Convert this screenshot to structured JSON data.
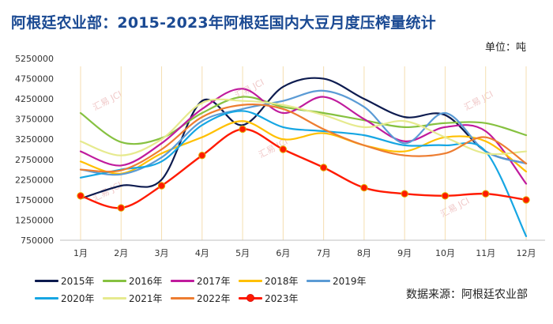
{
  "title": "阿根廷农业部：2015-2023年阿根廷国内大豆月度压榨量统计",
  "unit_label": "单位：吨",
  "source_label": "数据来源：阿根廷农业部",
  "watermark_text": "汇易",
  "watermark_sub": "JCI",
  "chart_data": {
    "type": "line",
    "title": "阿根廷农业部：2015-2023年阿根廷国内大豆月度压榨量统计",
    "xlabel": "",
    "ylabel": "单位：吨",
    "ylim": [
      750000,
      5250000
    ],
    "yticks": [
      750000,
      1250000,
      1750000,
      2250000,
      2750000,
      3250000,
      3750000,
      4250000,
      4750000,
      5250000
    ],
    "yticks_labels": [
      "750000",
      "1250000",
      "1750000",
      "2250000",
      "2750000",
      "3250000",
      "3750000",
      "4250000",
      "4750000",
      "5250000"
    ],
    "grid": false,
    "legend_position": "bottom-left",
    "categories": [
      "1月",
      "2月",
      "3月",
      "4月",
      "5月",
      "6月",
      "7月",
      "8月",
      "9月",
      "10月",
      "11月",
      "12月"
    ],
    "series": [
      {
        "name": "2015年",
        "color": "#0d1b4f",
        "values": [
          1780000,
          2100000,
          2250000,
          4200000,
          3600000,
          4550000,
          4750000,
          4250000,
          3800000,
          3850000,
          2950000,
          2650000
        ]
      },
      {
        "name": "2016年",
        "color": "#86c140",
        "values": [
          3900000,
          3180000,
          3280000,
          3900000,
          4300000,
          4050000,
          3900000,
          3720000,
          3550000,
          3650000,
          3650000,
          3350000
        ]
      },
      {
        "name": "2017年",
        "color": "#c01b9d",
        "values": [
          2950000,
          2600000,
          3150000,
          4000000,
          4500000,
          3900000,
          4300000,
          3750000,
          3200000,
          3550000,
          3450000,
          2150000
        ]
      },
      {
        "name": "2018年",
        "color": "#ffc000",
        "values": [
          2700000,
          2400000,
          2900000,
          3300000,
          3700000,
          3250000,
          3400000,
          3100000,
          2950000,
          3300000,
          3200000,
          2450000
        ]
      },
      {
        "name": "2019年",
        "color": "#5b9bd5",
        "values": [
          2500000,
          2380000,
          2800000,
          3700000,
          4000000,
          4200000,
          4450000,
          4050000,
          3150000,
          3900000,
          2950000,
          2650000
        ]
      },
      {
        "name": "2020年",
        "color": "#16a6e3",
        "values": [
          2300000,
          2500000,
          2700000,
          3600000,
          3950000,
          3550000,
          3450000,
          3350000,
          3100000,
          3100000,
          2950000,
          850000
        ]
      },
      {
        "name": "2021年",
        "color": "#e6ea8e",
        "values": [
          3200000,
          2850000,
          3250000,
          4150000,
          4200000,
          4100000,
          3850000,
          3550000,
          3700000,
          3300000,
          2900000,
          2950000
        ]
      },
      {
        "name": "2022年",
        "color": "#ed7d31",
        "values": [
          2500000,
          2480000,
          3000000,
          3800000,
          4100000,
          4000000,
          3500000,
          3100000,
          2850000,
          2900000,
          3300000,
          2650000
        ]
      },
      {
        "name": "2023年",
        "color": "#ff1a00",
        "markers": true,
        "values": [
          1850000,
          1550000,
          2100000,
          2850000,
          3500000,
          3000000,
          2550000,
          2050000,
          1900000,
          1850000,
          1900000,
          1750000
        ]
      }
    ]
  }
}
